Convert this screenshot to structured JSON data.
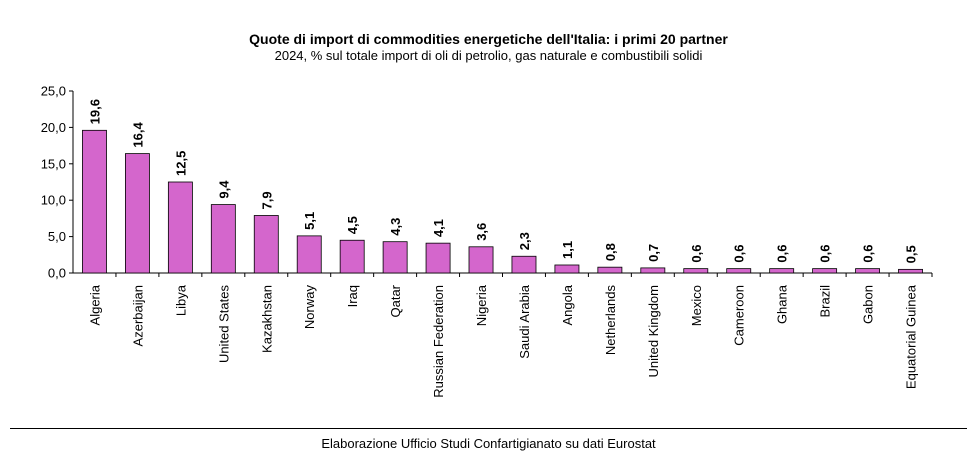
{
  "chart_data": {
    "type": "bar",
    "title": "Quote di import di commodities energetiche dell'Italia: i primi 20 partner",
    "subtitle": "2024, % sul totale import di oli di petrolio, gas naturale e combustibili solidi",
    "source": "Elaborazione Ufficio Studi Confartigianato su dati Eurostat",
    "categories": [
      "Algeria",
      "Azerbaijan",
      "Libya",
      "United States",
      "Kazakhstan",
      "Norway",
      "Iraq",
      "Qatar",
      "Russian Federation",
      "Nigeria",
      "Saudi Arabia",
      "Angola",
      "Netherlands",
      "United Kingdom",
      "Mexico",
      "Cameroon",
      "Ghana",
      "Brazil",
      "Gabon",
      "Equatorial Guinea"
    ],
    "values": [
      19.6,
      16.4,
      12.5,
      9.4,
      7.9,
      5.1,
      4.5,
      4.3,
      4.1,
      3.6,
      2.3,
      1.1,
      0.8,
      0.7,
      0.6,
      0.6,
      0.6,
      0.6,
      0.6,
      0.5
    ],
    "value_labels": [
      "19,6",
      "16,4",
      "12,5",
      "9,4",
      "7,9",
      "5,1",
      "4,5",
      "4,3",
      "4,1",
      "3,6",
      "2,3",
      "1,1",
      "0,8",
      "0,7",
      "0,6",
      "0,6",
      "0,6",
      "0,6",
      "0,6",
      "0,5"
    ],
    "yticks": [
      0,
      5,
      10,
      15,
      20,
      25
    ],
    "ytick_labels": [
      "0,0",
      "5,0",
      "10,0",
      "15,0",
      "20,0",
      "25,0"
    ],
    "ylim": [
      0,
      25
    ],
    "xlabel": "",
    "ylabel": "",
    "grid": false,
    "legend": false,
    "bar_color": "#d466cc",
    "bar_edge_color": "#000000"
  }
}
